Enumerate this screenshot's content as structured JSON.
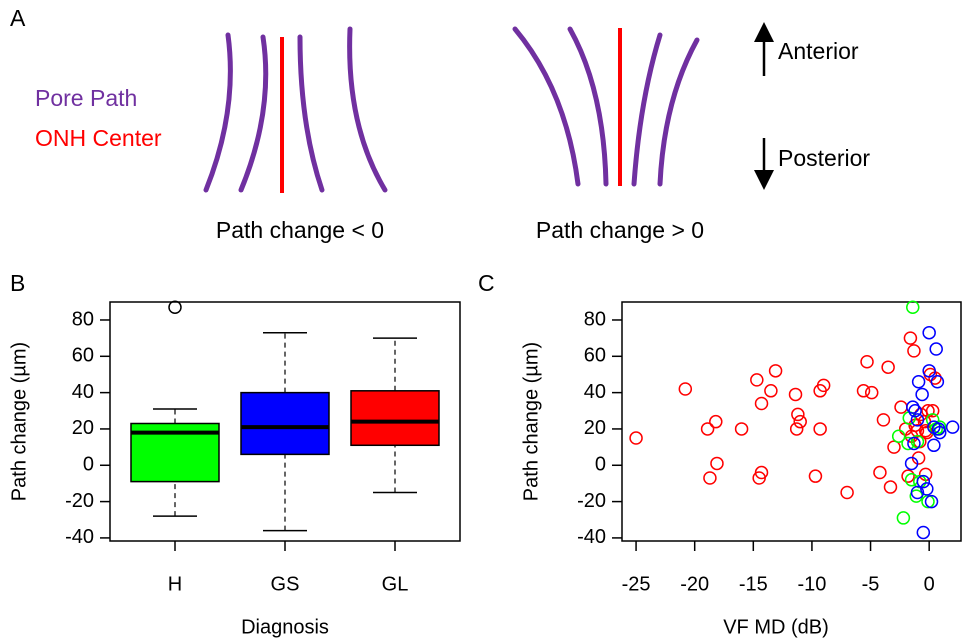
{
  "panel_a": {
    "label": "A",
    "legend": [
      "Pore Path",
      "ONH Center"
    ],
    "captions": [
      "Path change < 0",
      "Path change > 0"
    ],
    "directions": [
      "Anterior",
      "Posterior"
    ]
  },
  "chart_data": [
    {
      "type": "box",
      "panel_label": "B",
      "x_label": "Diagnosis",
      "y_label": "Path change (µm)",
      "categories": [
        "H",
        "GS",
        "GL"
      ],
      "boxes": [
        {
          "min": -28,
          "q1": -9,
          "median": 18,
          "q3": 23,
          "max": 31,
          "outliers": [
            87
          ],
          "color": "#00ff00"
        },
        {
          "min": -36,
          "q1": 6,
          "median": 21,
          "q3": 40,
          "max": 73,
          "color": "#0000ff"
        },
        {
          "min": -15,
          "q1": 11,
          "median": 24,
          "q3": 41,
          "max": 70,
          "color": "#ff0000"
        }
      ],
      "ylim": [
        -41.7,
        89.9
      ],
      "yticks": [
        -40,
        -20,
        0,
        20,
        40,
        60,
        80
      ]
    },
    {
      "type": "scatter",
      "panel_label": "C",
      "x_label": "VF MD (dB)",
      "y_label": "Path change (µm)",
      "xlim": [
        -26.2,
        2.8
      ],
      "xticks": [
        -25,
        -20,
        -15,
        -10,
        -5,
        0
      ],
      "ylim": [
        -41.7,
        89.9
      ],
      "yticks": [
        -40,
        -20,
        0,
        20,
        40,
        60,
        80
      ],
      "series": [
        {
          "color": "#ff0000",
          "x": [
            -25.0,
            -20.8,
            -18.9,
            -18.7,
            -18.2,
            -18.1,
            -16.0,
            -14.7,
            -14.5,
            -14.3,
            -14.3,
            -13.5,
            -13.1,
            -11.4,
            -11.2,
            -11.0,
            -11.3,
            -9.3,
            -9.0,
            -9.3,
            -9.7,
            -7.0,
            -5.6,
            -5.3,
            -4.9,
            -4.2,
            -3.9,
            -3.5,
            -3.3,
            -3.0,
            -2.4,
            -2.0,
            -1.8,
            -1.6,
            -1.5,
            -1.3,
            -1.2,
            -1.0,
            -0.9,
            -0.8,
            -0.7,
            -0.4,
            -0.3,
            -0.3,
            0.1,
            0.3,
            -0.1,
            0.5,
            -0.2
          ],
          "values": [
            15,
            42,
            20,
            -7,
            24,
            1,
            20,
            47,
            -7,
            -4,
            34,
            41,
            52,
            39,
            28,
            24,
            20,
            41,
            44,
            20,
            -6,
            -15,
            41,
            57,
            40,
            -4,
            25,
            54,
            -12,
            10,
            32,
            20,
            -6,
            70,
            16,
            63,
            22,
            19,
            4,
            13,
            28,
            24,
            19,
            -5,
            50,
            30,
            30,
            48,
            18
          ]
        },
        {
          "color": "#00ff00",
          "x": [
            -1.4,
            -2.6,
            -2.2,
            -1.7,
            -1.5,
            -1.1,
            -0.8,
            -1.0,
            0.3,
            0.6,
            -0.1,
            -1.8,
            0.9
          ],
          "values": [
            87,
            16,
            -29,
            26,
            -8,
            -17,
            -9,
            13,
            25,
            20,
            -20,
            12,
            21
          ]
        },
        {
          "color": "#0000ff",
          "x": [
            0.0,
            0.6,
            -1.4,
            -1.2,
            -0.9,
            -1.0,
            -1.3,
            -1.5,
            -0.6,
            0.0,
            0.7,
            -0.2,
            -0.5,
            0.2,
            -0.5,
            0.4,
            0.9,
            2.0,
            0.4,
            -1.0,
            0.8
          ],
          "values": [
            73,
            64,
            32,
            30,
            46,
            25,
            12,
            1,
            39,
            52,
            46,
            -13,
            -9,
            -20,
            -37,
            11,
            18,
            21,
            21,
            -15,
            20
          ]
        }
      ]
    }
  ]
}
